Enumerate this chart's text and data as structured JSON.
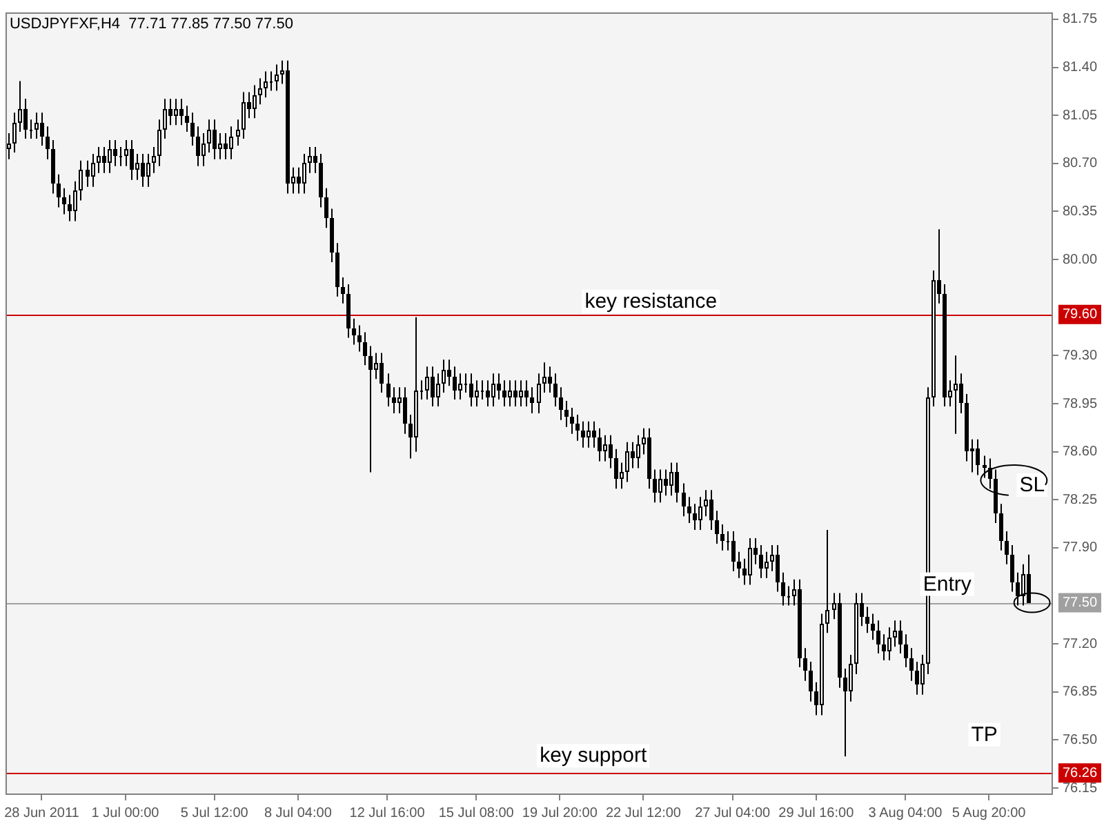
{
  "chart_data": {
    "type": "candlestick",
    "title": "USDJPYFXF,H4  77.71 77.85 77.50 77.50",
    "color": "#000000",
    "colors": [
      "#ffffff",
      "#ffffff",
      "#ffffff",
      "#000000",
      "#ffffff",
      "#ffffff",
      "#000000",
      "#000000",
      "#000000",
      "#000000",
      "#000000",
      "#000000",
      "#ffffff",
      "#ffffff",
      "#000000",
      "#ffffff",
      "#ffffff",
      "#000000",
      "#ffffff",
      "#000000",
      "#ffffff",
      "#ffffff",
      "#000000",
      "#ffffff",
      "#000000",
      "#ffffff",
      "#ffffff",
      "#ffffff",
      "#ffffff",
      "#000000",
      "#ffffff",
      "#000000",
      "#000000",
      "#000000",
      "#000000",
      "#ffffff",
      "#ffffff",
      "#000000",
      "#ffffff",
      "#000000",
      "#ffffff",
      "#ffffff",
      "#ffffff",
      "#000000",
      "#ffffff",
      "#ffffff",
      "#ffffff",
      "#ffffff",
      "#ffffff",
      "#ffffff",
      "#000000",
      "#ffffff",
      "#000000",
      "#ffffff",
      "#ffffff",
      "#000000",
      "#000000",
      "#000000",
      "#000000",
      "#000000",
      "#000000",
      "#000000",
      "#000000",
      "#000000",
      "#000000",
      "#000000",
      "#ffffff",
      "#000000",
      "#000000",
      "#000000",
      "#ffffff",
      "#000000",
      "#000000",
      "#ffffff",
      "#ffffff",
      "#ffffff",
      "#000000",
      "#ffffff",
      "#ffffff",
      "#000000",
      "#000000",
      "#ffffff",
      "#ffffff",
      "#000000",
      "#ffffff",
      "#ffffff",
      "#000000",
      "#ffffff",
      "#000000",
      "#000000",
      "#ffffff",
      "#000000",
      "#ffffff",
      "#000000",
      "#000000",
      "#ffffff",
      "#ffffff",
      "#000000",
      "#000000",
      "#000000",
      "#000000",
      "#000000",
      "#000000",
      "#000000",
      "#ffffff",
      "#000000",
      "#000000",
      "#ffffff",
      "#000000",
      "#000000",
      "#ffffff",
      "#ffffff",
      "#000000",
      "#ffffff",
      "#ffffff",
      "#000000",
      "#000000",
      "#ffffff",
      "#000000",
      "#ffffff",
      "#000000",
      "#000000",
      "#000000",
      "#000000",
      "#ffffff",
      "#ffffff",
      "#000000",
      "#000000",
      "#000000",
      "#ffffff",
      "#000000",
      "#000000",
      "#000000",
      "#ffffff",
      "#000000",
      "#000000",
      "#ffffff",
      "#ffffff",
      "#000000",
      "#000000",
      "#ffffff",
      "#ffffff",
      "#000000",
      "#000000",
      "#000000",
      "#000000",
      "#ffffff",
      "#ffffff",
      "#ffffff",
      "#000000",
      "#000000",
      "#ffffff",
      "#ffffff",
      "#000000",
      "#000000",
      "#000000",
      "#000000",
      "#000000",
      "#ffffff",
      "#ffffff",
      "#000000",
      "#000000",
      "#000000",
      "#000000",
      "#ffffff",
      "#ffffff",
      "#ffffff",
      "#000000",
      "#000000",
      "#ffffff",
      "#ffffff",
      "#000000",
      "#000000",
      "#ffffff",
      "#000000",
      "#000000",
      "#000000",
      "#000000",
      "#000000",
      "#000000",
      "#000000",
      "#000000",
      "#ffffff",
      "#000000"
    ],
    "categories": [
      null,
      null,
      null,
      null,
      null,
      null,
      "28 Jun 2011",
      null,
      null,
      null,
      null,
      null,
      null,
      null,
      null,
      null,
      null,
      null,
      null,
      null,
      null,
      "1 Jul 00:00",
      null,
      null,
      null,
      null,
      null,
      null,
      null,
      null,
      null,
      null,
      null,
      null,
      null,
      null,
      null,
      "5 Jul 12:00",
      null,
      null,
      null,
      null,
      null,
      null,
      null,
      null,
      null,
      null,
      null,
      null,
      null,
      null,
      "8 Jul 04:00",
      null,
      null,
      null,
      null,
      null,
      null,
      null,
      null,
      null,
      null,
      null,
      null,
      null,
      null,
      null,
      "12 Jul 16:00",
      null,
      null,
      null,
      null,
      null,
      null,
      null,
      null,
      null,
      null,
      null,
      null,
      null,
      null,
      null,
      "15 Jul 08:00",
      null,
      null,
      null,
      null,
      null,
      null,
      null,
      null,
      null,
      null,
      null,
      null,
      null,
      null,
      "19 Jul 20:00",
      null,
      null,
      null,
      null,
      null,
      null,
      null,
      null,
      null,
      null,
      null,
      null,
      null,
      null,
      "22 Jul 12:00",
      null,
      null,
      null,
      null,
      null,
      null,
      null,
      null,
      null,
      null,
      null,
      null,
      null,
      null,
      null,
      "27 Jul 04:00",
      null,
      null,
      null,
      null,
      null,
      null,
      null,
      null,
      null,
      null,
      null,
      null,
      null,
      null,
      "29 Jul 16:00",
      null,
      null,
      null,
      null,
      null,
      null,
      null,
      null,
      null,
      null,
      null,
      null,
      null,
      null,
      null,
      "3 Aug 04:00",
      null,
      null,
      null,
      null,
      null,
      null,
      null,
      null,
      null,
      null,
      null,
      null,
      null,
      null,
      "5 Aug 20:00",
      null,
      null,
      null,
      null,
      null,
      null,
      null
    ],
    "ohlc": [
      [
        80.8,
        80.92,
        80.73,
        80.85
      ],
      [
        80.85,
        81.07,
        80.78,
        81.0
      ],
      [
        81.0,
        81.3,
        80.93,
        81.1
      ],
      [
        81.1,
        81.17,
        80.88,
        80.95
      ],
      [
        80.95,
        81.02,
        80.88,
        80.95
      ],
      [
        80.95,
        81.07,
        80.88,
        81.0
      ],
      [
        81.0,
        81.07,
        80.83,
        80.9
      ],
      [
        80.9,
        80.97,
        80.73,
        80.8
      ],
      [
        80.8,
        80.87,
        80.48,
        80.55
      ],
      [
        80.55,
        80.62,
        80.38,
        80.45
      ],
      [
        80.45,
        80.52,
        80.33,
        80.4
      ],
      [
        80.4,
        80.47,
        80.28,
        80.35
      ],
      [
        80.35,
        80.57,
        80.28,
        80.5
      ],
      [
        80.5,
        80.72,
        80.43,
        80.65
      ],
      [
        80.65,
        80.72,
        80.53,
        80.6
      ],
      [
        80.6,
        80.77,
        80.53,
        80.7
      ],
      [
        80.7,
        80.82,
        80.63,
        80.75
      ],
      [
        80.75,
        80.82,
        80.63,
        80.7
      ],
      [
        80.7,
        80.87,
        80.63,
        80.8
      ],
      [
        80.8,
        80.87,
        80.68,
        80.75
      ],
      [
        80.75,
        80.82,
        80.68,
        80.75
      ],
      [
        80.75,
        80.87,
        80.68,
        80.8
      ],
      [
        80.8,
        80.87,
        80.58,
        80.65
      ],
      [
        80.65,
        80.77,
        80.58,
        80.7
      ],
      [
        80.7,
        80.77,
        80.53,
        80.6
      ],
      [
        80.6,
        80.77,
        80.53,
        80.7
      ],
      [
        80.7,
        80.82,
        80.63,
        80.75
      ],
      [
        80.75,
        81.02,
        80.68,
        80.95
      ],
      [
        80.95,
        81.17,
        80.88,
        81.1
      ],
      [
        81.1,
        81.17,
        80.98,
        81.05
      ],
      [
        81.05,
        81.17,
        80.98,
        81.1
      ],
      [
        81.1,
        81.17,
        80.98,
        81.05
      ],
      [
        81.05,
        81.12,
        80.93,
        81.0
      ],
      [
        81.0,
        81.07,
        80.83,
        80.9
      ],
      [
        80.9,
        80.97,
        80.68,
        80.75
      ],
      [
        80.75,
        80.92,
        80.68,
        80.85
      ],
      [
        80.85,
        81.02,
        80.78,
        80.95
      ],
      [
        80.95,
        81.02,
        80.73,
        80.8
      ],
      [
        80.8,
        80.92,
        80.73,
        80.85
      ],
      [
        80.85,
        80.92,
        80.73,
        80.8
      ],
      [
        80.8,
        80.97,
        80.73,
        80.9
      ],
      [
        80.9,
        81.02,
        80.83,
        80.95
      ],
      [
        80.95,
        81.22,
        80.88,
        81.15
      ],
      [
        81.15,
        81.22,
        81.03,
        81.1
      ],
      [
        81.1,
        81.27,
        81.03,
        81.2
      ],
      [
        81.2,
        81.32,
        81.13,
        81.25
      ],
      [
        81.25,
        81.37,
        81.18,
        81.3
      ],
      [
        81.3,
        81.37,
        81.23,
        81.3
      ],
      [
        81.3,
        81.42,
        81.23,
        81.35
      ],
      [
        81.35,
        81.45,
        81.28,
        81.38
      ],
      [
        81.38,
        81.45,
        80.48,
        80.55
      ],
      [
        80.55,
        80.67,
        80.48,
        80.6
      ],
      [
        80.6,
        80.67,
        80.48,
        80.55
      ],
      [
        80.55,
        80.77,
        80.48,
        80.7
      ],
      [
        80.7,
        80.82,
        80.63,
        80.75
      ],
      [
        80.75,
        80.82,
        80.63,
        80.7
      ],
      [
        80.7,
        80.77,
        80.38,
        80.45
      ],
      [
        80.45,
        80.52,
        80.23,
        80.3
      ],
      [
        80.3,
        80.37,
        79.98,
        80.05
      ],
      [
        80.05,
        80.12,
        79.73,
        79.8
      ],
      [
        79.8,
        79.87,
        79.68,
        79.75
      ],
      [
        79.75,
        79.82,
        79.43,
        79.5
      ],
      [
        79.5,
        79.57,
        79.38,
        79.45
      ],
      [
        79.45,
        79.52,
        79.33,
        79.4
      ],
      [
        79.4,
        79.47,
        79.23,
        79.3
      ],
      [
        79.3,
        79.37,
        78.45,
        79.2
      ],
      [
        79.2,
        79.32,
        79.13,
        79.25
      ],
      [
        79.25,
        79.32,
        79.03,
        79.1
      ],
      [
        79.1,
        79.17,
        78.93,
        79.0
      ],
      [
        79.0,
        79.07,
        78.88,
        78.95
      ],
      [
        78.95,
        79.07,
        78.88,
        79.0
      ],
      [
        79.0,
        79.07,
        78.73,
        78.8
      ],
      [
        78.8,
        78.87,
        78.55,
        78.7
      ],
      [
        78.7,
        79.58,
        78.6,
        79.05
      ],
      [
        79.05,
        79.12,
        78.98,
        79.05
      ],
      [
        79.05,
        79.22,
        78.98,
        79.15
      ],
      [
        79.15,
        79.22,
        78.93,
        79.0
      ],
      [
        79.0,
        79.17,
        78.93,
        79.1
      ],
      [
        79.1,
        79.27,
        79.03,
        79.2
      ],
      [
        79.2,
        79.27,
        79.08,
        79.15
      ],
      [
        79.15,
        79.22,
        78.98,
        79.05
      ],
      [
        79.05,
        79.17,
        78.98,
        79.1
      ],
      [
        79.1,
        79.17,
        79.03,
        79.1
      ],
      [
        79.1,
        79.17,
        78.93,
        79.0
      ],
      [
        79.0,
        79.12,
        78.93,
        79.05
      ],
      [
        79.05,
        79.12,
        78.98,
        79.05
      ],
      [
        79.05,
        79.12,
        78.93,
        79.0
      ],
      [
        79.0,
        79.17,
        78.93,
        79.1
      ],
      [
        79.1,
        79.17,
        78.98,
        79.05
      ],
      [
        79.05,
        79.12,
        78.93,
        79.0
      ],
      [
        79.0,
        79.12,
        78.93,
        79.05
      ],
      [
        79.05,
        79.12,
        78.93,
        79.0
      ],
      [
        79.0,
        79.12,
        78.93,
        79.05
      ],
      [
        79.05,
        79.12,
        78.93,
        79.0
      ],
      [
        79.0,
        79.07,
        78.88,
        78.95
      ],
      [
        78.95,
        79.17,
        78.88,
        79.1
      ],
      [
        79.1,
        79.25,
        79.03,
        79.15
      ],
      [
        79.15,
        79.22,
        79.03,
        79.1
      ],
      [
        79.1,
        79.17,
        78.93,
        79.0
      ],
      [
        79.0,
        79.07,
        78.83,
        78.9
      ],
      [
        78.9,
        78.97,
        78.78,
        78.85
      ],
      [
        78.85,
        78.92,
        78.73,
        78.8
      ],
      [
        78.8,
        78.87,
        78.68,
        78.75
      ],
      [
        78.75,
        78.82,
        78.63,
        78.7
      ],
      [
        78.7,
        78.82,
        78.63,
        78.75
      ],
      [
        78.75,
        78.82,
        78.63,
        78.7
      ],
      [
        78.7,
        78.77,
        78.53,
        78.6
      ],
      [
        78.6,
        78.72,
        78.53,
        78.65
      ],
      [
        78.65,
        78.72,
        78.48,
        78.55
      ],
      [
        78.55,
        78.62,
        78.33,
        78.4
      ],
      [
        78.4,
        78.52,
        78.33,
        78.45
      ],
      [
        78.45,
        78.67,
        78.38,
        78.6
      ],
      [
        78.6,
        78.67,
        78.48,
        78.55
      ],
      [
        78.55,
        78.72,
        78.48,
        78.65
      ],
      [
        78.65,
        78.77,
        78.58,
        78.7
      ],
      [
        78.7,
        78.77,
        78.33,
        78.4
      ],
      [
        78.4,
        78.47,
        78.23,
        78.3
      ],
      [
        78.3,
        78.47,
        78.23,
        78.4
      ],
      [
        78.4,
        78.47,
        78.28,
        78.35
      ],
      [
        78.35,
        78.52,
        78.28,
        78.45
      ],
      [
        78.45,
        78.52,
        78.23,
        78.3
      ],
      [
        78.3,
        78.37,
        78.13,
        78.2
      ],
      [
        78.2,
        78.27,
        78.08,
        78.15
      ],
      [
        78.15,
        78.22,
        78.03,
        78.1
      ],
      [
        78.1,
        78.27,
        78.03,
        78.2
      ],
      [
        78.2,
        78.32,
        78.13,
        78.25
      ],
      [
        78.25,
        78.32,
        78.03,
        78.1
      ],
      [
        78.1,
        78.17,
        77.93,
        78.0
      ],
      [
        78.0,
        78.07,
        77.88,
        77.95
      ],
      [
        77.95,
        78.02,
        77.88,
        77.95
      ],
      [
        77.95,
        78.02,
        77.73,
        77.8
      ],
      [
        77.8,
        77.87,
        77.68,
        77.75
      ],
      [
        77.75,
        77.82,
        77.63,
        77.7
      ],
      [
        77.7,
        77.97,
        77.63,
        77.9
      ],
      [
        77.9,
        77.97,
        77.78,
        77.85
      ],
      [
        77.85,
        77.92,
        77.68,
        77.75
      ],
      [
        77.75,
        77.87,
        77.68,
        77.8
      ],
      [
        77.8,
        77.92,
        77.73,
        77.85
      ],
      [
        77.85,
        77.92,
        77.58,
        77.65
      ],
      [
        77.65,
        77.72,
        77.48,
        77.55
      ],
      [
        77.55,
        77.62,
        77.48,
        77.55
      ],
      [
        77.55,
        77.67,
        77.48,
        77.6
      ],
      [
        77.6,
        77.67,
        77.03,
        77.1
      ],
      [
        77.1,
        77.17,
        76.93,
        77.0
      ],
      [
        77.0,
        77.07,
        76.78,
        76.85
      ],
      [
        76.85,
        76.92,
        76.68,
        76.75
      ],
      [
        76.75,
        77.42,
        76.68,
        77.35
      ],
      [
        77.35,
        78.03,
        77.28,
        77.45
      ],
      [
        77.45,
        77.57,
        77.38,
        77.5
      ],
      [
        77.5,
        77.57,
        76.88,
        76.95
      ],
      [
        76.95,
        77.02,
        76.38,
        76.85
      ],
      [
        76.85,
        77.12,
        76.78,
        77.05
      ],
      [
        77.05,
        77.57,
        76.98,
        77.5
      ],
      [
        77.5,
        77.57,
        77.33,
        77.4
      ],
      [
        77.4,
        77.47,
        77.28,
        77.35
      ],
      [
        77.35,
        77.42,
        77.23,
        77.3
      ],
      [
        77.3,
        77.37,
        77.13,
        77.2
      ],
      [
        77.2,
        77.27,
        77.08,
        77.15
      ],
      [
        77.15,
        77.32,
        77.08,
        77.25
      ],
      [
        77.25,
        77.37,
        77.18,
        77.3
      ],
      [
        77.3,
        77.37,
        77.13,
        77.2
      ],
      [
        77.2,
        77.27,
        77.03,
        77.1
      ],
      [
        77.1,
        77.17,
        76.93,
        77.0
      ],
      [
        77.0,
        77.07,
        76.83,
        76.9
      ],
      [
        76.9,
        77.12,
        76.83,
        77.05
      ],
      [
        77.05,
        79.07,
        76.98,
        79.0
      ],
      [
        79.0,
        79.92,
        78.93,
        79.85
      ],
      [
        79.85,
        80.22,
        79.68,
        79.75
      ],
      [
        79.75,
        79.82,
        78.93,
        79.0
      ],
      [
        79.0,
        79.12,
        78.93,
        79.05
      ],
      [
        79.05,
        79.3,
        78.73,
        79.1
      ],
      [
        79.1,
        79.17,
        78.88,
        78.95
      ],
      [
        78.95,
        79.02,
        78.53,
        78.6
      ],
      [
        78.6,
        78.69,
        78.45,
        78.62
      ],
      [
        78.62,
        78.69,
        78.43,
        78.5
      ],
      [
        78.5,
        78.57,
        78.41,
        78.48
      ],
      [
        78.48,
        78.55,
        78.33,
        78.4
      ],
      [
        78.4,
        78.47,
        78.08,
        78.15
      ],
      [
        78.15,
        78.22,
        77.88,
        77.95
      ],
      [
        77.95,
        78.02,
        77.78,
        77.85
      ],
      [
        77.85,
        77.92,
        77.58,
        77.65
      ],
      [
        77.65,
        77.72,
        77.48,
        77.55
      ],
      [
        77.55,
        77.78,
        77.48,
        77.71
      ],
      [
        77.71,
        77.85,
        77.5,
        77.5
      ]
    ],
    "ylim": [
      76.1,
      81.8
    ],
    "yticks": [
      {
        "value": 76.15,
        "label": "76.15"
      },
      {
        "value": 76.5,
        "label": "76.50"
      },
      {
        "value": 76.85,
        "label": "76.85"
      },
      {
        "value": 77.2,
        "label": "77.20"
      },
      {
        "value": 77.9,
        "label": "77.90"
      },
      {
        "value": 78.25,
        "label": "78.25"
      },
      {
        "value": 78.6,
        "label": "78.60"
      },
      {
        "value": 78.95,
        "label": "78.95"
      },
      {
        "value": 79.3,
        "label": "79.30"
      },
      {
        "value": 80.0,
        "label": "80.00"
      },
      {
        "value": 80.35,
        "label": "80.35"
      },
      {
        "value": 80.7,
        "label": "80.70"
      },
      {
        "value": 81.05,
        "label": "81.05"
      },
      {
        "value": 81.4,
        "label": "81.40"
      },
      {
        "value": 81.75,
        "label": "81.75"
      }
    ],
    "ref_lines": [
      {
        "axis": "y",
        "value": 79.6,
        "label": "79.60",
        "color": "#cc0000"
      },
      {
        "axis": "y",
        "value": 77.5,
        "label": "77.50",
        "color": "#a0a0a0"
      },
      {
        "axis": "y",
        "value": 76.26,
        "label": "76.26",
        "color": "#cc0000"
      }
    ],
    "annotations": [
      {
        "text": "key resistance",
        "y": 79.6
      },
      {
        "text": "key support",
        "y": 76.26
      },
      {
        "text": "Entry",
        "y": 77.5
      },
      "SL",
      "TP"
    ]
  }
}
